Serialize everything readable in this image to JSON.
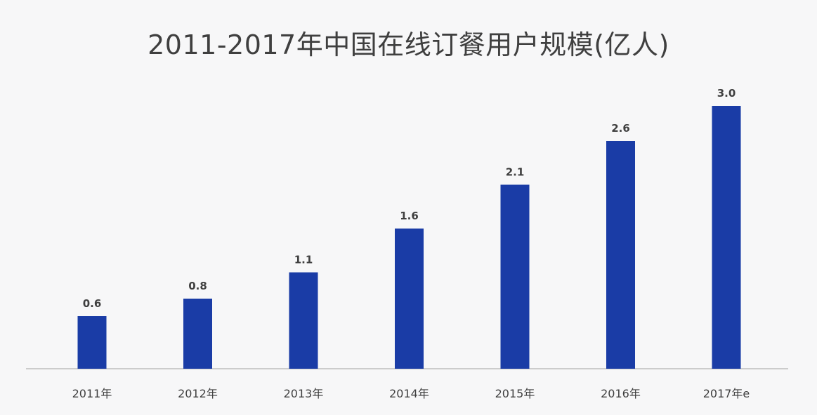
{
  "chart_data": {
    "type": "bar",
    "title": "2011-2017年中国在线订餐用户规模(亿人)",
    "xlabel": "",
    "ylabel": "",
    "categories": [
      "2011年",
      "2012年",
      "2013年",
      "2014年",
      "2015年",
      "2016年",
      "2017年e"
    ],
    "values": [
      0.6,
      0.8,
      1.1,
      1.6,
      2.1,
      2.6,
      3.0
    ],
    "value_labels": [
      "0.6",
      "0.8",
      "1.1",
      "1.6",
      "2.1",
      "2.6",
      "3.0"
    ],
    "ylim": [
      0,
      3.0
    ],
    "grid": false,
    "legend": "none",
    "bar_color": "#1a3ca6",
    "axis_color": "#bdbdbd",
    "text_color": "#3f3f3f"
  }
}
